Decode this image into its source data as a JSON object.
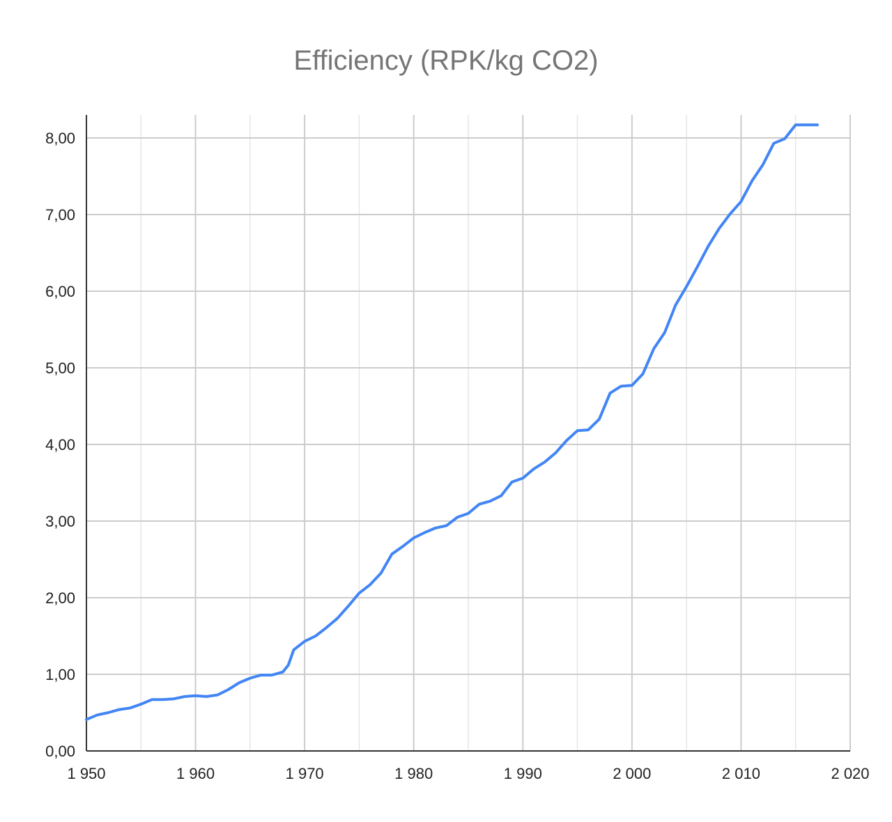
{
  "chart_data": {
    "type": "line",
    "title": "Efficiency (RPK/kg CO2)",
    "xlabel": "",
    "ylabel": "",
    "xlim": [
      1950,
      2020
    ],
    "ylim": [
      0,
      8.3
    ],
    "grid": true,
    "legend": "none",
    "x_ticks": [
      1950,
      1960,
      1970,
      1980,
      1990,
      2000,
      2010,
      2020
    ],
    "x_tick_labels": [
      "1 950",
      "1 960",
      "1 970",
      "1 980",
      "1 990",
      "2 000",
      "2 010",
      "2 020"
    ],
    "x_minor_ticks": [
      1955,
      1965,
      1975,
      1985,
      1995,
      2005,
      2015
    ],
    "y_ticks": [
      0,
      1,
      2,
      3,
      4,
      5,
      6,
      7,
      8
    ],
    "y_tick_labels": [
      "0,00",
      "1,00",
      "2,00",
      "3,00",
      "4,00",
      "5,00",
      "6,00",
      "7,00",
      "8,00"
    ],
    "series": [
      {
        "name": "Efficiency (RPK/kg CO2)",
        "color": "#4285f4",
        "x": [
          1950,
          1951,
          1952,
          1953,
          1954,
          1955,
          1956,
          1957,
          1958,
          1959,
          1960,
          1961,
          1962,
          1963,
          1964,
          1965,
          1966,
          1967,
          1968,
          1968.5,
          1969,
          1970,
          1971,
          1972,
          1973,
          1974,
          1975,
          1976,
          1977,
          1978,
          1979,
          1980,
          1981,
          1982,
          1983,
          1984,
          1985,
          1986,
          1987,
          1988,
          1989,
          1990,
          1991,
          1992,
          1993,
          1994,
          1995,
          1996,
          1997,
          1998,
          1999,
          2000,
          2001,
          2002,
          2003,
          2004,
          2005,
          2006,
          2007,
          2008,
          2009,
          2010,
          2011,
          2012,
          2013,
          2014,
          2015,
          2016,
          2017
        ],
        "y": [
          0.41,
          0.47,
          0.5,
          0.54,
          0.56,
          0.61,
          0.67,
          0.67,
          0.68,
          0.71,
          0.72,
          0.71,
          0.73,
          0.8,
          0.89,
          0.95,
          0.99,
          0.99,
          1.03,
          1.12,
          1.32,
          1.43,
          1.5,
          1.61,
          1.73,
          1.89,
          2.06,
          2.17,
          2.32,
          2.57,
          2.67,
          2.78,
          2.85,
          2.91,
          2.94,
          3.05,
          3.1,
          3.22,
          3.26,
          3.33,
          3.51,
          3.56,
          3.68,
          3.77,
          3.89,
          4.05,
          4.18,
          4.19,
          4.33,
          4.67,
          4.76,
          4.77,
          4.92,
          5.25,
          5.46,
          5.82,
          6.06,
          6.32,
          6.59,
          6.82,
          7.01,
          7.17,
          7.44,
          7.65,
          7.93,
          7.99,
          8.17,
          8.17,
          8.17
        ]
      }
    ]
  }
}
